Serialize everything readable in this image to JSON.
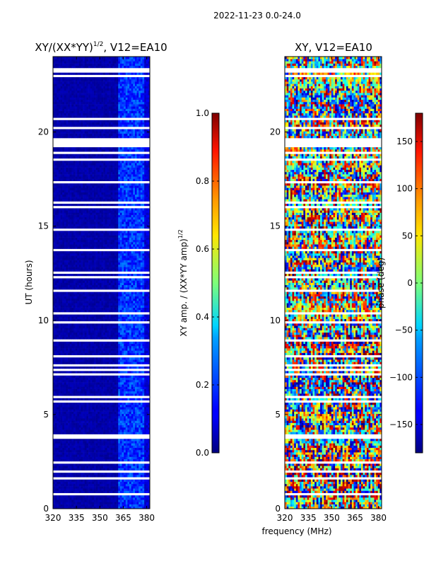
{
  "suptitle": "2022-11-23 0.0-24.0",
  "shared_xlabel": "frequency (MHz)",
  "chart_data": [
    {
      "type": "heatmap",
      "title": "XY/(XX*YY)",
      "title_exponent": "1/2",
      "title_suffix": ", V12=EA10",
      "xlabel": "",
      "ylabel": "UT (hours)",
      "x_range": [
        320,
        382
      ],
      "y_range": [
        0,
        24
      ],
      "x_ticks": [
        320,
        335,
        350,
        365,
        380
      ],
      "y_ticks": [
        0,
        5,
        10,
        15,
        20
      ],
      "colorbar": {
        "label": "XY amp. / (XX*YY amp)",
        "label_exponent": "1/2",
        "range": [
          0.0,
          1.0
        ],
        "ticks": [
          "0.0",
          "0.2",
          "0.4",
          "0.6",
          "0.8",
          "1.0"
        ],
        "tick_values": [
          0.0,
          0.2,
          0.4,
          0.6,
          0.8,
          1.0
        ],
        "colormap": "jet"
      },
      "pattern": "mostly near 0 (dark blue) everywhere; elevated 0.1-0.25 in band 362-378 MHz; many blank (white) time rows"
    },
    {
      "type": "heatmap",
      "title": "XY, V12=EA10",
      "xlabel": "",
      "ylabel": "",
      "x_range": [
        320,
        382
      ],
      "y_range": [
        0,
        24
      ],
      "x_ticks": [
        320,
        335,
        350,
        365,
        380
      ],
      "y_ticks": [
        0,
        5,
        10,
        15,
        20
      ],
      "colorbar": {
        "label": "phase (deg)",
        "range": [
          -180,
          180
        ],
        "ticks": [
          "−150",
          "−100",
          "−50",
          "0",
          "50",
          "100",
          "150"
        ],
        "tick_values": [
          -150,
          -100,
          -50,
          0,
          50,
          100,
          150
        ],
        "colormap": "jet"
      },
      "pattern": "noisy phase values spanning full -180..180 range with horizontal streaks; many blank (white) time rows"
    }
  ]
}
